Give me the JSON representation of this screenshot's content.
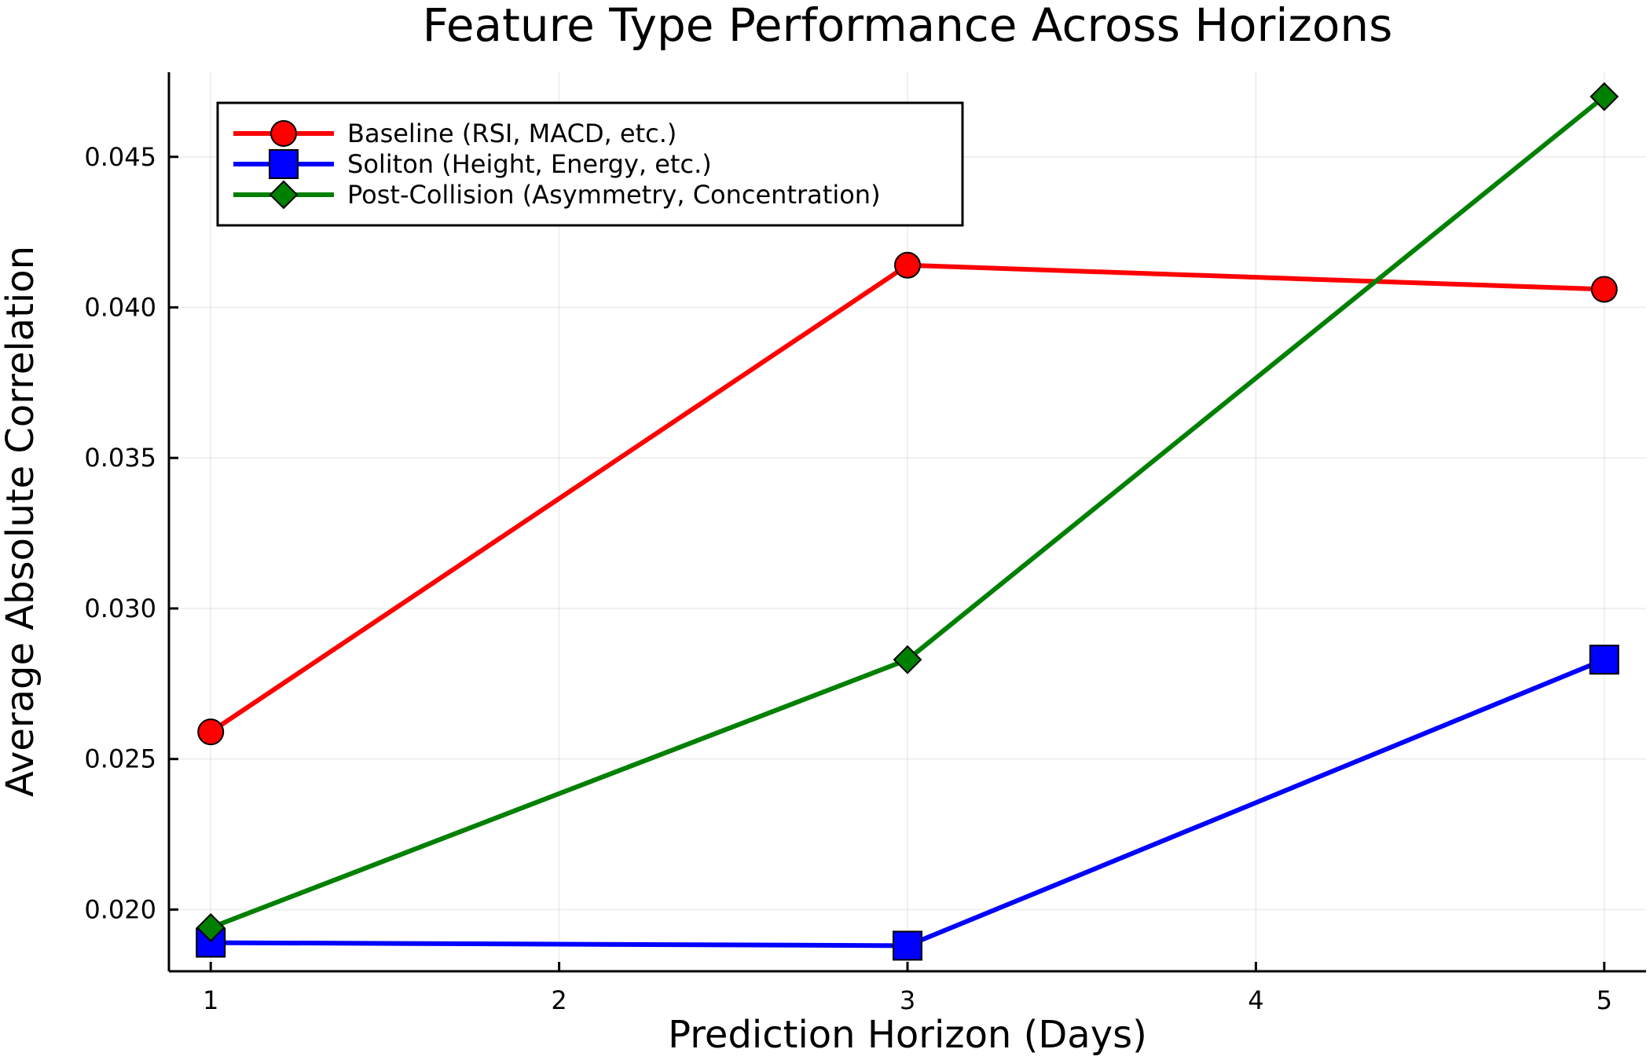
{
  "chart_data": {
    "type": "line",
    "title": "Feature Type Performance Across Horizons",
    "xlabel": "Prediction Horizon (Days)",
    "ylabel": "Average Absolute Correlation",
    "x": [
      1,
      3,
      5
    ],
    "xlim": [
      0.88,
      5.12
    ],
    "ylim": [
      0.01795,
      0.04781
    ],
    "xticks": [
      1,
      2,
      3,
      4,
      5
    ],
    "xtick_labels": [
      "1",
      "2",
      "3",
      "4",
      "5"
    ],
    "yticks": [
      0.02,
      0.025,
      0.03,
      0.035,
      0.04,
      0.045
    ],
    "ytick_labels": [
      "0.020",
      "0.025",
      "0.030",
      "0.035",
      "0.040",
      "0.045"
    ],
    "grid": true,
    "legend_position": "top-left",
    "series": [
      {
        "name": "Baseline (RSI, MACD, etc.)",
        "values": [
          0.0259,
          0.0414,
          0.0406
        ],
        "color": "#ff0000",
        "marker": "circle"
      },
      {
        "name": "Soliton (Height, Energy, etc.)",
        "values": [
          0.0189,
          0.0188,
          0.0283
        ],
        "color": "#0000ff",
        "marker": "square"
      },
      {
        "name": "Post-Collision (Asymmetry, Concentration)",
        "values": [
          0.0194,
          0.0283,
          0.047
        ],
        "color": "#008000",
        "marker": "diamond"
      }
    ]
  }
}
